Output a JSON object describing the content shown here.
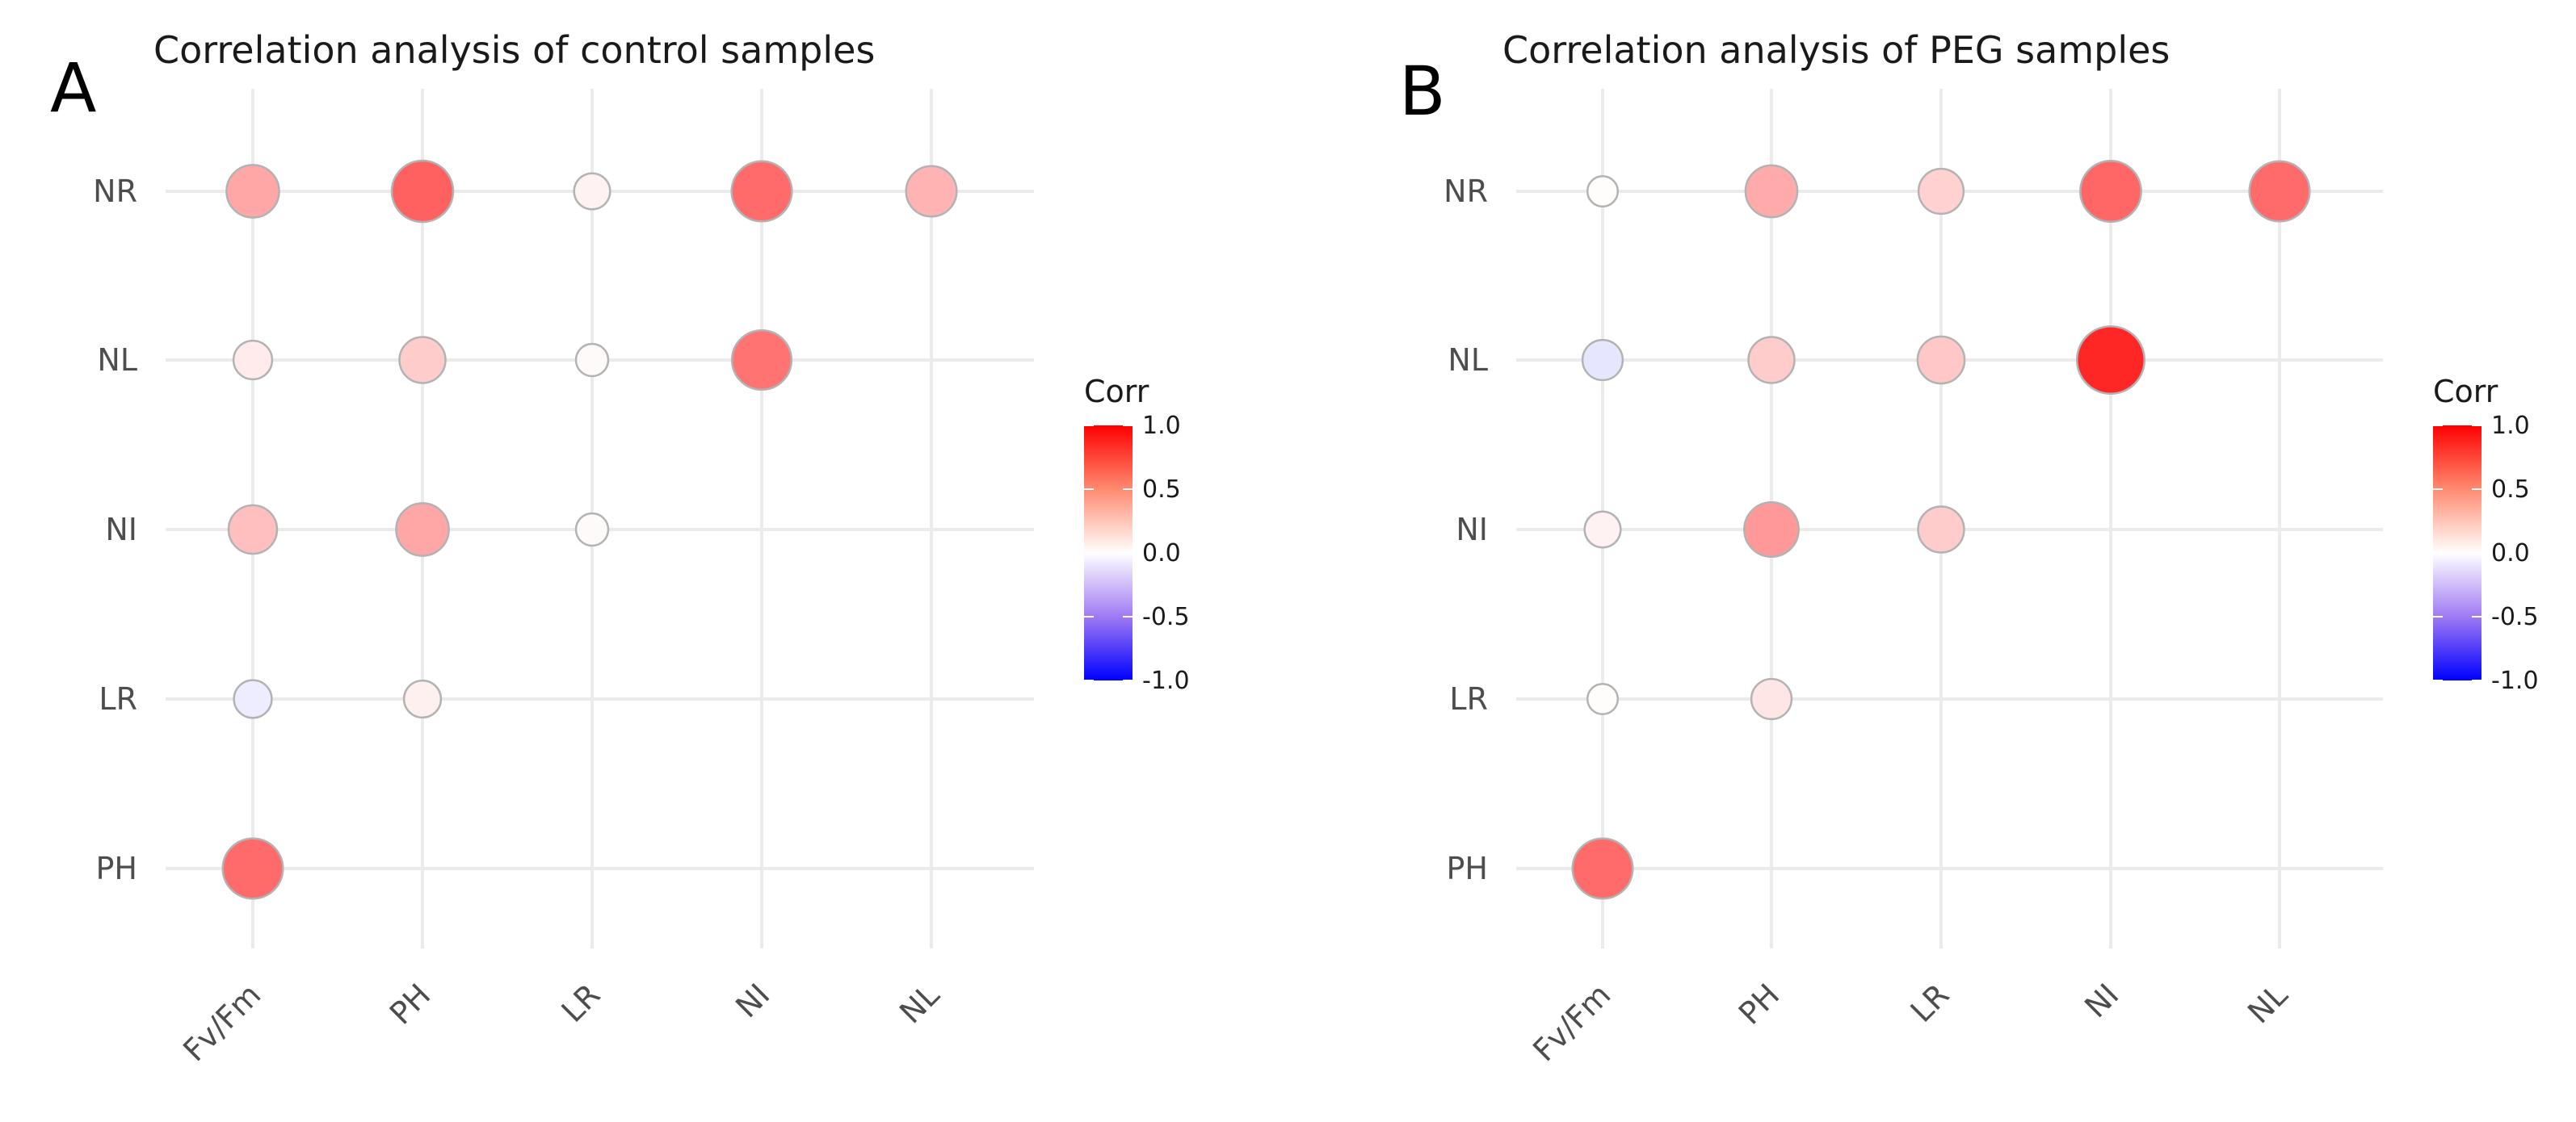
{
  "chart_data": [
    {
      "type": "scatter",
      "panel_label": "A",
      "title": "Correlation analysis of control samples",
      "x_categories": [
        "Fv/Fm",
        "PH",
        "LR",
        "NI",
        "NL"
      ],
      "y_categories": [
        "NR",
        "NL",
        "NI",
        "LR",
        "PH"
      ],
      "legend": {
        "title": "Corr",
        "ticks": [
          "1.0",
          "0.5",
          "0.0",
          "-0.5",
          "-1.0"
        ],
        "range": [
          -1,
          1
        ],
        "colors": {
          "low": "#0000FF",
          "mid": "#FFFFFF",
          "high": "#FF0000"
        }
      },
      "cells": [
        {
          "x": "Fv/Fm",
          "y": "NR",
          "value": 0.35
        },
        {
          "x": "PH",
          "y": "NR",
          "value": 0.62
        },
        {
          "x": "LR",
          "y": "NR",
          "value": 0.05
        },
        {
          "x": "NI",
          "y": "NR",
          "value": 0.58
        },
        {
          "x": "NL",
          "y": "NR",
          "value": 0.3
        },
        {
          "x": "Fv/Fm",
          "y": "NL",
          "value": 0.08
        },
        {
          "x": "PH",
          "y": "NL",
          "value": 0.2
        },
        {
          "x": "LR",
          "y": "NL",
          "value": 0.02
        },
        {
          "x": "NI",
          "y": "NL",
          "value": 0.55
        },
        {
          "x": "Fv/Fm",
          "y": "NI",
          "value": 0.25
        },
        {
          "x": "PH",
          "y": "NI",
          "value": 0.35
        },
        {
          "x": "LR",
          "y": "NI",
          "value": 0.02
        },
        {
          "x": "Fv/Fm",
          "y": "LR",
          "value": -0.07
        },
        {
          "x": "PH",
          "y": "LR",
          "value": 0.06
        },
        {
          "x": "Fv/Fm",
          "y": "PH",
          "value": 0.58
        }
      ]
    },
    {
      "type": "scatter",
      "panel_label": "B",
      "title": "Correlation analysis of PEG samples",
      "x_categories": [
        "Fv/Fm",
        "PH",
        "LR",
        "NI",
        "NL"
      ],
      "y_categories": [
        "NR",
        "NL",
        "NI",
        "LR",
        "PH"
      ],
      "legend": {
        "title": "Corr",
        "ticks": [
          "1.0",
          "0.5",
          "0.0",
          "-0.5",
          "-1.0"
        ],
        "range": [
          -1,
          1
        ],
        "colors": {
          "low": "#0000FF",
          "mid": "#FFFFFF",
          "high": "#FF0000"
        }
      },
      "cells": [
        {
          "x": "Fv/Fm",
          "y": "NR",
          "value": 0.01
        },
        {
          "x": "PH",
          "y": "NR",
          "value": 0.33
        },
        {
          "x": "LR",
          "y": "NR",
          "value": 0.18
        },
        {
          "x": "NI",
          "y": "NR",
          "value": 0.6
        },
        {
          "x": "NL",
          "y": "NR",
          "value": 0.58
        },
        {
          "x": "Fv/Fm",
          "y": "NL",
          "value": -0.1
        },
        {
          "x": "PH",
          "y": "NL",
          "value": 0.2
        },
        {
          "x": "LR",
          "y": "NL",
          "value": 0.22
        },
        {
          "x": "NI",
          "y": "NL",
          "value": 0.85
        },
        {
          "x": "Fv/Fm",
          "y": "NI",
          "value": 0.05
        },
        {
          "x": "PH",
          "y": "NI",
          "value": 0.4
        },
        {
          "x": "LR",
          "y": "NI",
          "value": 0.2
        },
        {
          "x": "Fv/Fm",
          "y": "LR",
          "value": 0.01
        },
        {
          "x": "PH",
          "y": "LR",
          "value": 0.1
        },
        {
          "x": "Fv/Fm",
          "y": "PH",
          "value": 0.58
        }
      ]
    }
  ]
}
